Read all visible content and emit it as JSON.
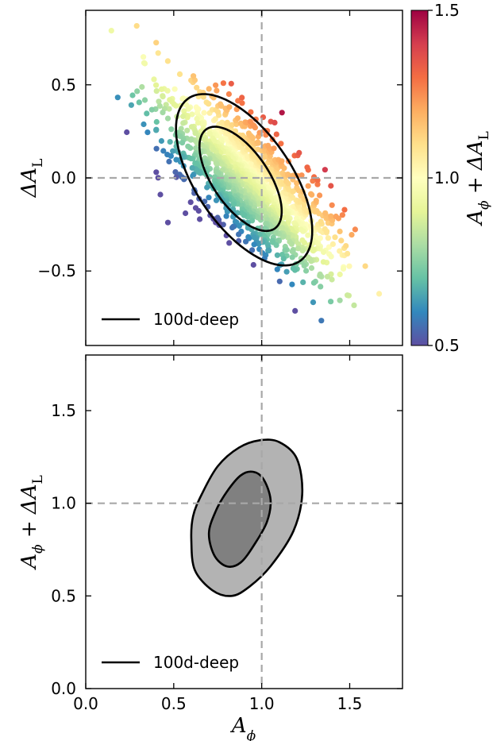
{
  "chart_data": [
    {
      "panel": "top",
      "type": "scatter",
      "xlim": [
        0.0,
        1.8
      ],
      "ylim": [
        -0.9,
        0.9
      ],
      "yticks": [
        -0.5,
        0.0,
        0.5
      ],
      "ytick_labels": [
        "−0.5",
        "0.0",
        "0.5"
      ],
      "ylabel": "ΔA_L",
      "grid": false,
      "reference_lines": {
        "x": 1.0,
        "y": 0.0,
        "style": "dashed",
        "color": "#a8a8a8"
      },
      "colormap": "Spectral_r",
      "colorbar": {
        "label": "A_φ + ΔA_L",
        "range": [
          0.5,
          1.5
        ],
        "ticks": [
          0.5,
          1.0,
          1.5
        ],
        "tick_labels": [
          "0.5",
          "1.0",
          "1.5"
        ]
      },
      "scatter_distribution": {
        "center": [
          0.93,
          -0.02
        ],
        "sd_along_major": 0.3,
        "sd_along_minor": 0.12,
        "major_axis_slope": -1.0,
        "approx_points": 1500
      },
      "contours": [
        {
          "level": "68%",
          "center": [
            0.88,
            -0.005
          ],
          "semi_major": 0.33,
          "semi_minor": 0.155,
          "major_axis_direction": [
            0.6,
            -0.8
          ]
        },
        {
          "level": "95%",
          "center": [
            0.9,
            -0.01
          ],
          "semi_major": 0.54,
          "semi_minor": 0.265,
          "major_axis_direction": [
            0.6,
            -0.8
          ]
        }
      ],
      "legend": {
        "label": "100d-deep",
        "location": "lower-left"
      }
    },
    {
      "panel": "bottom",
      "type": "contour",
      "xlim": [
        0.0,
        1.8
      ],
      "ylim": [
        0.0,
        1.8
      ],
      "xticks": [
        0.0,
        0.5,
        1.0,
        1.5
      ],
      "xtick_labels": [
        "0.0",
        "0.5",
        "1.0",
        "1.5"
      ],
      "yticks": [
        0.0,
        0.5,
        1.0,
        1.5
      ],
      "ytick_labels": [
        "0.0",
        "0.5",
        "1.0",
        "1.5"
      ],
      "xlabel": "A_φ",
      "ylabel": "A_φ + ΔA_L",
      "grid": false,
      "reference_lines": {
        "x": 1.0,
        "y": 1.0,
        "style": "dashed",
        "color": "#a8a8a8"
      },
      "contours": [
        {
          "level": "95%",
          "fill": "#b3b3b3",
          "points": [
            [
              0.6,
              0.8
            ],
            [
              0.62,
              0.64
            ],
            [
              0.72,
              0.53
            ],
            [
              0.83,
              0.5
            ],
            [
              0.93,
              0.55
            ],
            [
              1.05,
              0.66
            ],
            [
              1.18,
              0.85
            ],
            [
              1.23,
              1.05
            ],
            [
              1.2,
              1.24
            ],
            [
              1.1,
              1.33
            ],
            [
              0.99,
              1.34
            ],
            [
              0.87,
              1.3
            ],
            [
              0.75,
              1.2
            ],
            [
              0.66,
              1.05
            ],
            [
              0.61,
              0.93
            ]
          ]
        },
        {
          "level": "68%",
          "fill": "#808080",
          "points": [
            [
              0.7,
              0.84
            ],
            [
              0.73,
              0.72
            ],
            [
              0.8,
              0.66
            ],
            [
              0.88,
              0.68
            ],
            [
              0.96,
              0.78
            ],
            [
              1.03,
              0.9
            ],
            [
              1.05,
              1.02
            ],
            [
              1.01,
              1.13
            ],
            [
              0.95,
              1.17
            ],
            [
              0.88,
              1.15
            ],
            [
              0.8,
              1.06
            ],
            [
              0.74,
              0.96
            ]
          ]
        }
      ],
      "legend": {
        "label": "100d-deep",
        "location": "lower-left"
      }
    }
  ]
}
